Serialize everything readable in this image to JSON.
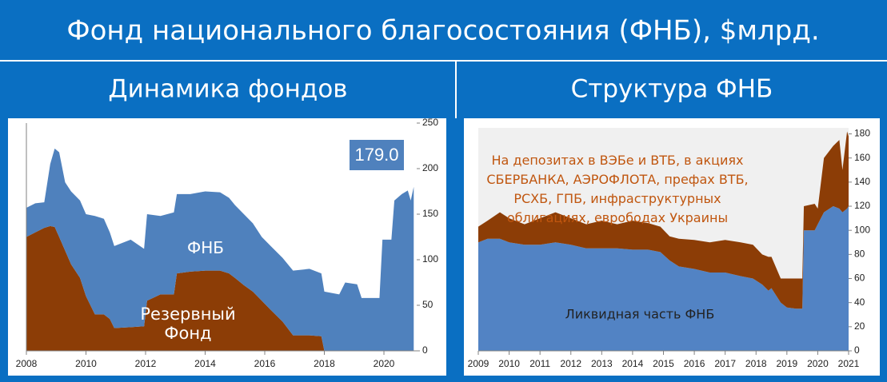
{
  "header": {
    "title": "Фонд национального благосостояния (ФНБ), $млрд."
  },
  "chart_data": [
    {
      "type": "area",
      "stacked": true,
      "title": "Динамика фондов",
      "x": [
        2008.0,
        2008.3,
        2008.6,
        2008.8,
        2008.95,
        2009.1,
        2009.3,
        2009.5,
        2009.8,
        2010.0,
        2010.3,
        2010.6,
        2010.8,
        2010.95,
        2011.5,
        2011.95,
        2012.05,
        2012.5,
        2012.95,
        2013.05,
        2013.5,
        2014.0,
        2014.5,
        2014.8,
        2015.0,
        2015.3,
        2015.6,
        2015.9,
        2016.2,
        2016.6,
        2016.95,
        2017.5,
        2017.9,
        2018.0,
        2018.5,
        2018.7,
        2019.1,
        2019.25,
        2019.85,
        2019.95,
        2020.25,
        2020.35,
        2020.6,
        2020.8,
        2020.9,
        2021.0
      ],
      "series": [
        {
          "name": "Резервный Фонд",
          "color": "#8c3d06",
          "values": [
            125,
            130,
            135,
            137,
            136,
            125,
            110,
            95,
            80,
            60,
            40,
            40,
            35,
            25,
            26,
            27,
            55,
            62,
            62,
            85,
            87,
            88,
            88,
            85,
            80,
            72,
            65,
            55,
            45,
            32,
            17,
            17,
            16,
            0,
            0,
            0,
            0,
            0,
            0,
            0,
            0,
            0,
            0,
            0,
            0,
            0
          ]
        },
        {
          "name": "ФНБ",
          "color": "#4f81bd",
          "values": [
            32,
            32,
            28,
            68,
            86,
            93,
            75,
            80,
            85,
            90,
            108,
            105,
            95,
            90,
            96,
            85,
            95,
            86,
            90,
            87,
            85,
            87,
            86,
            83,
            80,
            78,
            75,
            70,
            70,
            70,
            71,
            73,
            69,
            65,
            62,
            75,
            73,
            58,
            58,
            122,
            122,
            165,
            172,
            176,
            165,
            180
          ]
        }
      ],
      "annotations": [
        "179.0"
      ],
      "xlim": [
        2008,
        2021.1
      ],
      "xticks": [
        2008,
        2010,
        2012,
        2014,
        2016,
        2018,
        2020
      ],
      "ylim": [
        0,
        250
      ],
      "yticks": [
        0,
        50,
        100,
        150,
        200,
        250
      ]
    },
    {
      "type": "area",
      "stacked": true,
      "title": "Структура ФНБ",
      "x": [
        2009.0,
        2009.3,
        2009.7,
        2010.0,
        2010.5,
        2011.0,
        2011.5,
        2012.0,
        2012.5,
        2013.0,
        2013.5,
        2014.0,
        2014.5,
        2014.9,
        2015.2,
        2015.5,
        2016.0,
        2016.5,
        2017.0,
        2017.5,
        2017.9,
        2018.2,
        2018.4,
        2018.5,
        2018.8,
        2019.0,
        2019.3,
        2019.5,
        2019.55,
        2019.9,
        2020.0,
        2020.2,
        2020.5,
        2020.7,
        2020.8,
        2020.95,
        2021.0
      ],
      "series": [
        {
          "name": "Ликвидная часть ФНБ",
          "color": "#5283c4",
          "values": [
            90,
            93,
            93,
            90,
            88,
            88,
            90,
            88,
            85,
            85,
            85,
            84,
            84,
            82,
            75,
            70,
            68,
            65,
            65,
            62,
            60,
            55,
            50,
            52,
            40,
            36,
            35,
            35,
            100,
            100,
            105,
            115,
            120,
            118,
            115,
            118,
            120
          ]
        },
        {
          "name": "На депозитах в ВЭБе и ВТБ, в акциях СБЕРБАНКА, АЭРОФЛОТА, префах ВТБ, РСХБ, ГПБ, инфраструктурных облигациях, еврободах Украины",
          "color": "#8c3d06",
          "values": [
            13,
            15,
            22,
            20,
            17,
            22,
            25,
            22,
            20,
            23,
            20,
            24,
            22,
            21,
            20,
            23,
            24,
            25,
            27,
            28,
            28,
            25,
            28,
            26,
            20,
            24,
            25,
            25,
            20,
            22,
            13,
            45,
            50,
            57,
            35,
            64,
            58
          ]
        }
      ],
      "xlim": [
        2009,
        2021
      ],
      "xticks": [
        2009,
        2010,
        2011,
        2012,
        2013,
        2014,
        2015,
        2016,
        2017,
        2018,
        2019,
        2020,
        2021
      ],
      "ylim": [
        0,
        185
      ],
      "yticks": [
        0,
        20,
        40,
        60,
        80,
        100,
        120,
        140,
        160,
        180
      ]
    }
  ]
}
